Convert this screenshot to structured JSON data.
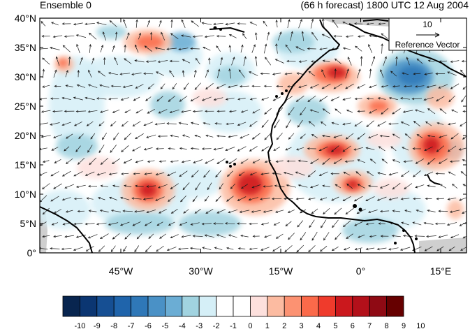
{
  "header": {
    "left_title": "Ensemble 0",
    "right_title": "(66 h forecast) 1800 UTC 12 Aug 2004"
  },
  "axes": {
    "lat_labels": [
      "40°N",
      "35°N",
      "30°N",
      "25°N",
      "20°N",
      "15°N",
      "10°N",
      "5°N",
      "0°"
    ],
    "lon_labels": [
      "45°W",
      "30°W",
      "15°W",
      "0°",
      "15°E"
    ]
  },
  "reference_vector": {
    "magnitude": "10",
    "label": "Reference Vector"
  },
  "colorbar": {
    "labels": [
      "-10",
      "-9",
      "-8",
      "-7",
      "-6",
      "-5",
      "-4",
      "-3",
      "-2",
      "-1",
      "0",
      "1",
      "2",
      "3",
      "4",
      "5",
      "6",
      "7",
      "8",
      "9",
      "10"
    ],
    "colors": [
      "#08254f",
      "#0b3672",
      "#164f93",
      "#1f64ab",
      "#2f78b8",
      "#4a91c6",
      "#6badd4",
      "#a1d3e0",
      "#d5eff7",
      "#ffffff",
      "#ffffff",
      "#fde0dd",
      "#fcbba1",
      "#fc9272",
      "#fb6a4a",
      "#ef3b2c",
      "#cb181d",
      "#b3101a",
      "#8f0a14",
      "#660000"
    ]
  },
  "colors": {
    "land_mask": "#cfcfcf",
    "coastline": "#000000"
  }
}
